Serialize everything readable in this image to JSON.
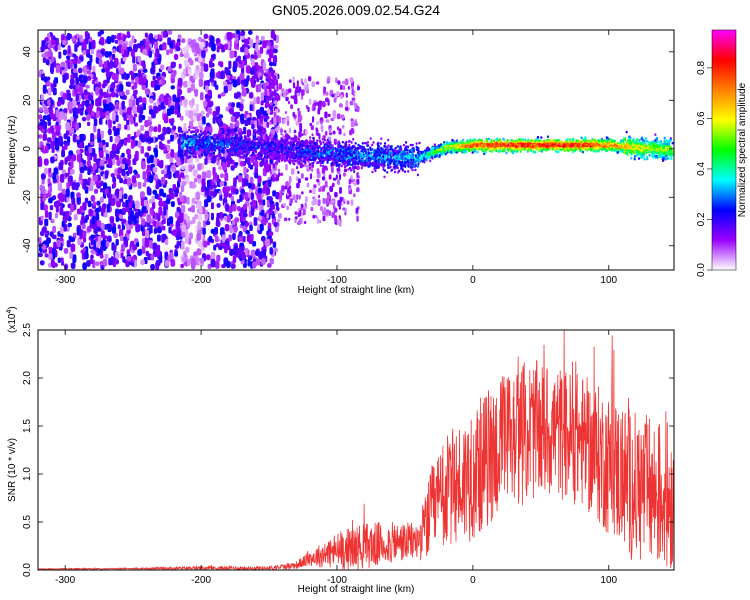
{
  "chart_data": [
    {
      "type": "heatmap",
      "title": "GN05.2026.009.02.54.G24",
      "xlabel": "Height of straight line (km)",
      "ylabel": "Frequency (Hz)",
      "xlim": [
        -320,
        148
      ],
      "ylim": [
        -50,
        49
      ],
      "xticks": [
        -300,
        -200,
        -100,
        0,
        100
      ],
      "yticks": [
        -40,
        -20,
        0,
        20,
        40
      ],
      "colorbar": {
        "label": "Normalized spectral amplitude",
        "range": [
          0,
          0.95
        ],
        "ticks": [
          0.0,
          0.2,
          0.4,
          0.6,
          0.8
        ],
        "colors": [
          "#ffffff",
          "#9a00ff",
          "#0000ff",
          "#00ffff",
          "#00ff00",
          "#ffff00",
          "#ff8000",
          "#ff0000",
          "#ff00ff"
        ]
      },
      "description_points": {
        "ridge_x": [
          -215,
          -180,
          -150,
          -120,
          -90,
          -60,
          -40,
          -20,
          0,
          20,
          40,
          60,
          80,
          100,
          120,
          148
        ],
        "ridge_freq": [
          3,
          2,
          1,
          -1,
          -2,
          -3,
          -3,
          1,
          2,
          2,
          2,
          2,
          2,
          2,
          1,
          0
        ],
        "ridge_amplitude": [
          0.3,
          0.25,
          0.2,
          0.25,
          0.3,
          0.3,
          0.35,
          0.55,
          0.75,
          0.8,
          0.8,
          0.8,
          0.8,
          0.7,
          0.6,
          0.5
        ]
      }
    },
    {
      "type": "line",
      "title": "",
      "xlabel": "Height of straight line (km)",
      "ylabel": "SNR (10 * v/v)",
      "scale_label": "(x10",
      "scale_exponent": "4",
      "scale_suffix": ")",
      "xlim": [
        -320,
        148
      ],
      "ylim": [
        0,
        2.5
      ],
      "xticks": [
        -300,
        -200,
        -100,
        0,
        100
      ],
      "yticks": [
        "0.0",
        "0.5",
        "1.0",
        "1.5",
        "2.0",
        "2.5"
      ],
      "color": "#ee3333",
      "envelope": {
        "x": [
          -320,
          -250,
          -200,
          -150,
          -130,
          -120,
          -100,
          -80,
          -60,
          -40,
          -30,
          -20,
          0,
          20,
          40,
          60,
          80,
          100,
          120,
          148
        ],
        "y_base": [
          0.01,
          0.015,
          0.02,
          0.02,
          0.05,
          0.12,
          0.2,
          0.25,
          0.28,
          0.3,
          0.6,
          0.8,
          1.0,
          1.3,
          1.45,
          1.45,
          1.35,
          1.1,
          0.85,
          0.75
        ],
        "y_noise": [
          0.005,
          0.005,
          0.02,
          0.02,
          0.04,
          0.08,
          0.2,
          0.25,
          0.22,
          0.2,
          0.5,
          0.6,
          0.7,
          0.75,
          0.75,
          0.7,
          0.7,
          0.75,
          0.8,
          0.8
        ]
      }
    }
  ]
}
